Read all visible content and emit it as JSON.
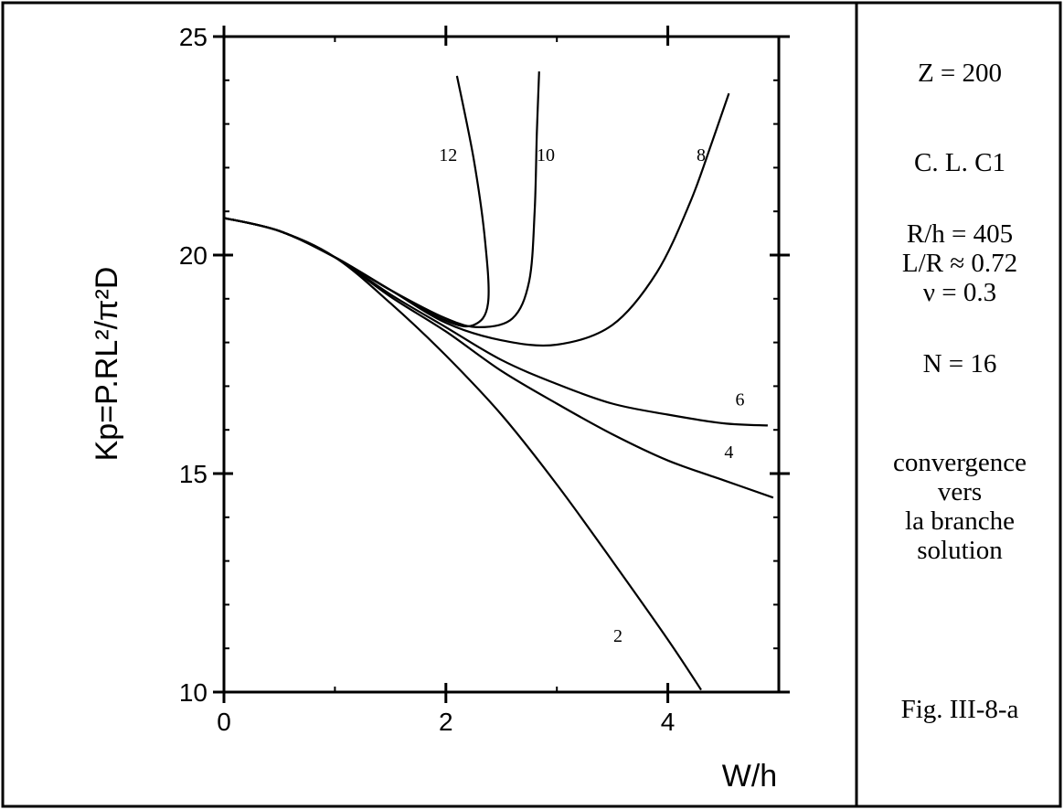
{
  "chart_data": {
    "type": "line",
    "title": "",
    "xlabel": "W/h",
    "ylabel": "Kp=P.RL²/π²D",
    "xlim": [
      0,
      5
    ],
    "ylim": [
      10,
      25
    ],
    "x_ticks": [
      0,
      2,
      4
    ],
    "y_ticks": [
      10,
      15,
      20,
      25
    ],
    "grid": false,
    "series": [
      {
        "name": "2",
        "label_at": [
          3.55,
          11.3
        ],
        "points": [
          [
            0,
            20.85
          ],
          [
            0.5,
            20.55
          ],
          [
            1,
            19.95
          ],
          [
            1.5,
            18.9
          ],
          [
            2,
            17.7
          ],
          [
            2.5,
            16.35
          ],
          [
            3,
            14.75
          ],
          [
            3.5,
            13.0
          ],
          [
            4,
            11.2
          ],
          [
            4.3,
            10.05
          ]
        ]
      },
      {
        "name": "4",
        "label_at": [
          4.55,
          15.5
        ],
        "points": [
          [
            0,
            20.85
          ],
          [
            0.5,
            20.55
          ],
          [
            1,
            19.95
          ],
          [
            1.5,
            19.05
          ],
          [
            2,
            18.25
          ],
          [
            2.5,
            17.35
          ],
          [
            3,
            16.6
          ],
          [
            3.5,
            15.9
          ],
          [
            4,
            15.3
          ],
          [
            4.5,
            14.85
          ],
          [
            4.95,
            14.45
          ]
        ]
      },
      {
        "name": "6",
        "label_at": [
          4.65,
          16.7
        ],
        "points": [
          [
            0,
            20.85
          ],
          [
            0.5,
            20.55
          ],
          [
            1,
            19.95
          ],
          [
            1.5,
            19.1
          ],
          [
            2,
            18.35
          ],
          [
            2.5,
            17.6
          ],
          [
            3,
            17.05
          ],
          [
            3.5,
            16.6
          ],
          [
            4,
            16.35
          ],
          [
            4.5,
            16.15
          ],
          [
            4.9,
            16.1
          ]
        ]
      },
      {
        "name": "8",
        "label_at": [
          4.3,
          22.3
        ],
        "points": [
          [
            0,
            20.85
          ],
          [
            0.5,
            20.55
          ],
          [
            1,
            19.95
          ],
          [
            1.5,
            19.2
          ],
          [
            2,
            18.45
          ],
          [
            2.5,
            18.05
          ],
          [
            3,
            17.95
          ],
          [
            3.5,
            18.4
          ],
          [
            3.9,
            19.6
          ],
          [
            4.2,
            21.2
          ],
          [
            4.4,
            22.6
          ],
          [
            4.55,
            23.7
          ]
        ]
      },
      {
        "name": "10",
        "label_at": [
          2.9,
          22.3
        ],
        "points": [
          [
            0,
            20.85
          ],
          [
            0.5,
            20.55
          ],
          [
            1,
            19.95
          ],
          [
            1.5,
            19.2
          ],
          [
            2,
            18.55
          ],
          [
            2.3,
            18.35
          ],
          [
            2.6,
            18.55
          ],
          [
            2.75,
            19.4
          ],
          [
            2.8,
            21.0
          ],
          [
            2.82,
            22.8
          ],
          [
            2.84,
            24.2
          ]
        ]
      },
      {
        "name": "12",
        "label_at": [
          2.02,
          22.3
        ],
        "points": [
          [
            0,
            20.85
          ],
          [
            0.5,
            20.55
          ],
          [
            1,
            19.95
          ],
          [
            1.5,
            19.2
          ],
          [
            2,
            18.5
          ],
          [
            2.25,
            18.4
          ],
          [
            2.38,
            18.9
          ],
          [
            2.35,
            20.4
          ],
          [
            2.25,
            22.2
          ],
          [
            2.1,
            24.1
          ]
        ]
      }
    ]
  },
  "info": {
    "z": "Z = 200",
    "cl": "C. L.  C1",
    "rh": "R/h = 405",
    "lr": "L/R ≈ 0.72",
    "nu": "ν  = 0.3",
    "n": "N  = 16",
    "desc1": "convergence",
    "desc2": "vers",
    "desc3": "la branche",
    "desc4": "solution",
    "fig": "Fig. III-8-a"
  }
}
